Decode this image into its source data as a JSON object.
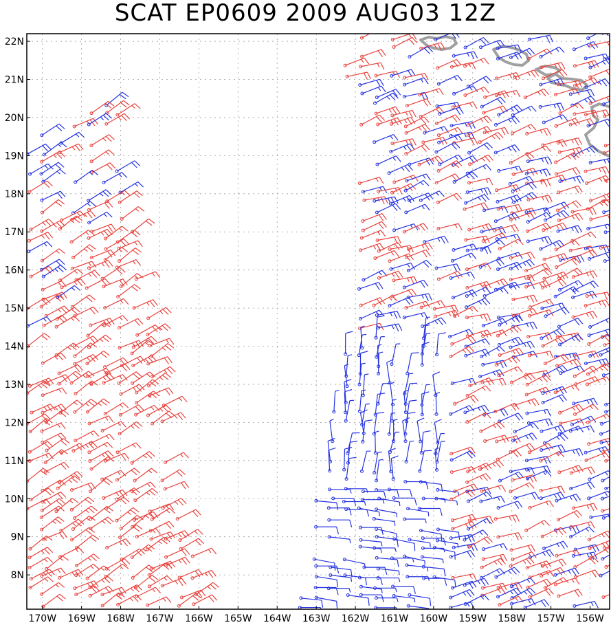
{
  "title": "SCAT EP0609 2009 AUG03 12Z",
  "map": {
    "lon_range": [
      -170.4,
      -155.5
    ],
    "lat_range": [
      7.1,
      22.2
    ],
    "lon_ticks": [
      {
        "value": -170,
        "label": "170W"
      },
      {
        "value": -169,
        "label": "169W"
      },
      {
        "value": -168,
        "label": "168W"
      },
      {
        "value": -167,
        "label": "167W"
      },
      {
        "value": -166,
        "label": "166W"
      },
      {
        "value": -165,
        "label": "165W"
      },
      {
        "value": -164,
        "label": "164W"
      },
      {
        "value": -163,
        "label": "163W"
      },
      {
        "value": -162,
        "label": "162W"
      },
      {
        "value": -161,
        "label": "161W"
      },
      {
        "value": -160,
        "label": "160W"
      },
      {
        "value": -159,
        "label": "159W"
      },
      {
        "value": -158,
        "label": "158W"
      },
      {
        "value": -157,
        "label": "157W"
      },
      {
        "value": -156,
        "label": "156W"
      }
    ],
    "lat_ticks": [
      {
        "value": 8,
        "label": "8N"
      },
      {
        "value": 9,
        "label": "9N"
      },
      {
        "value": 10,
        "label": "10N"
      },
      {
        "value": 11,
        "label": "11N"
      },
      {
        "value": 12,
        "label": "12N"
      },
      {
        "value": 13,
        "label": "13N"
      },
      {
        "value": 14,
        "label": "14N"
      },
      {
        "value": 15,
        "label": "15N"
      },
      {
        "value": 16,
        "label": "16N"
      },
      {
        "value": 17,
        "label": "17N"
      },
      {
        "value": 18,
        "label": "18N"
      },
      {
        "value": 19,
        "label": "19N"
      },
      {
        "value": 20,
        "label": "20N"
      },
      {
        "value": 21,
        "label": "21N"
      },
      {
        "value": 22,
        "label": "22N"
      }
    ],
    "grid": "dotted",
    "colors": {
      "red_barbs": "#e8413c",
      "blue_barbs": "#2432e0",
      "coastline": "#a0a0a0",
      "grid": "#9a9a9a",
      "frame": "#000000"
    }
  }
}
